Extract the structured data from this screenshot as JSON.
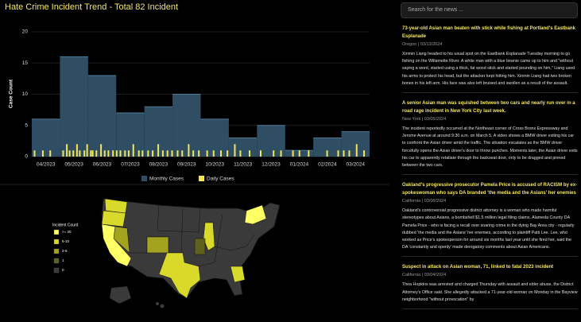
{
  "chart_data": {
    "type": "step-area",
    "title": "Hate Crime Incident Trend - Total 82 Incident",
    "y_label": "Case Count",
    "categories": [
      "04/2023",
      "05/2023",
      "06/2023",
      "07/2023",
      "08/2023",
      "09/2023",
      "10/2023",
      "11/2023",
      "12/2023",
      "01/2024",
      "02/2024",
      "03/2024"
    ],
    "ylim": [
      0,
      20
    ],
    "yticks": [
      0,
      5,
      10,
      15,
      20
    ],
    "series": [
      {
        "name": "Monthly Cases",
        "color": "#2f4d63",
        "values": [
          6,
          16,
          13,
          7,
          8,
          10,
          6,
          3,
          5,
          1,
          3,
          4
        ]
      },
      {
        "name": "Daily Cases",
        "color": "#f2e65a",
        "x": [
          3,
          12,
          20,
          34,
          38,
          41,
          45,
          49,
          52,
          57,
          60,
          64,
          66,
          70,
          75,
          79,
          83,
          88,
          92,
          96,
          101,
          105,
          110,
          116,
          120,
          126,
          131,
          137,
          142,
          147,
          152,
          158,
          163,
          170,
          175,
          181,
          190,
          197,
          205,
          212,
          220,
          226,
          236,
          248,
          262,
          270,
          283,
          290,
          300,
          320,
          332,
          338,
          344,
          352,
          360
        ],
        "values": [
          1,
          1,
          1,
          1,
          2,
          1,
          1,
          2,
          1,
          1,
          2,
          1,
          1,
          1,
          2,
          1,
          1,
          1,
          1,
          1,
          1,
          1,
          2,
          1,
          1,
          1,
          1,
          2,
          1,
          1,
          1,
          1,
          1,
          2,
          1,
          1,
          1,
          1,
          1,
          1,
          2,
          1,
          1,
          1,
          1,
          1,
          1,
          1,
          1,
          1,
          1,
          1,
          1,
          2,
          1
        ]
      }
    ],
    "xlim": [
      0,
      366
    ],
    "legend": "bottom"
  },
  "map": {
    "legend_title": "Incident Count",
    "legend": [
      {
        "label": ">= 20",
        "color": "#ffff66"
      },
      {
        "label": "5-10",
        "color": "#d9d92c"
      },
      {
        "label": "2-5",
        "color": "#a3a31f"
      },
      {
        "label": "1",
        "color": "#60601f"
      },
      {
        "label": "0",
        "color": "#3a3a3a"
      }
    ]
  },
  "news": {
    "search_placeholder": "Search for the news ...",
    "items": [
      {
        "title": "73-year-old Asian man beaten with stick while fishing at Portland's Eastbank Esplanade",
        "meta": "Oregon | 03/13/2024",
        "body": "Xinmin Liang headed to his usual spot on the Eastbank Esplanade Tuesday morning to go fishing on the Willamette River. A white man with a blue beanie came up to him and \"without saying a word, started using a thick, fat wood stick and started pounding on him,\" Liang used his arms to protect his head, but the attacker kept hitting him. Xinmin Liang had two broken bones in his left arm. His face was also left bruised and swollen as a result of the assault."
      },
      {
        "title": "A senior Asian man was squished between two cars and nearly run over in a road rage incident in New York City last week.",
        "meta": "New York | 03/05/2024",
        "body": "The incident reportedly occurred at the Northeast corner of Cross Bronx Expressway and Jerome Avenue at around 9:30 a.m. on March 5. A video shows a BMW driver exiting his car to confront the Asian driver amid the traffic. The situation escalates as the BMW driver forcefully opens the Asian driver's door to throw punches. Moments later, the Asian driver exits his car to apparently retaliate through the backseat door, only to be dragged and pinned between the two cars."
      },
      {
        "title": "Oakland's progressive prosecutor Pamela Price is accused of RACISM by ex-spokeswoman who says DA branded 'the media and the Asians' her enemies",
        "meta": "California | 03/06/2024",
        "body": "Oakland's controversial progressive district attorney is a woman who made harmful stereotypes about Asians, a bombshell $1.5 million legal filing claims. Alameda County DA Pamela Price - who is facing a recall over soaring crime in the dying Bay Area city - regularly dubbed 'the media and the Asians' her enemies, according to plaintiff Patti Lee. Lee, who worked as Price's spokesperson for around six months last year until she fired her, said the DA 'constantly and openly' made derogatory comments about Asian Americans."
      },
      {
        "title": "Suspect in attack on Asian woman, 71, linked to fatal 2023 incident",
        "meta": "California | 03/04/2024",
        "body": "Thea Hopkins was arrested and charged Thursday with assault and elder abuse, the District Attorney's Office said. She allegedly attacked a 71-year-old woman on Monday in the Bayview neighborhood \"without provocation\" by"
      }
    ]
  }
}
